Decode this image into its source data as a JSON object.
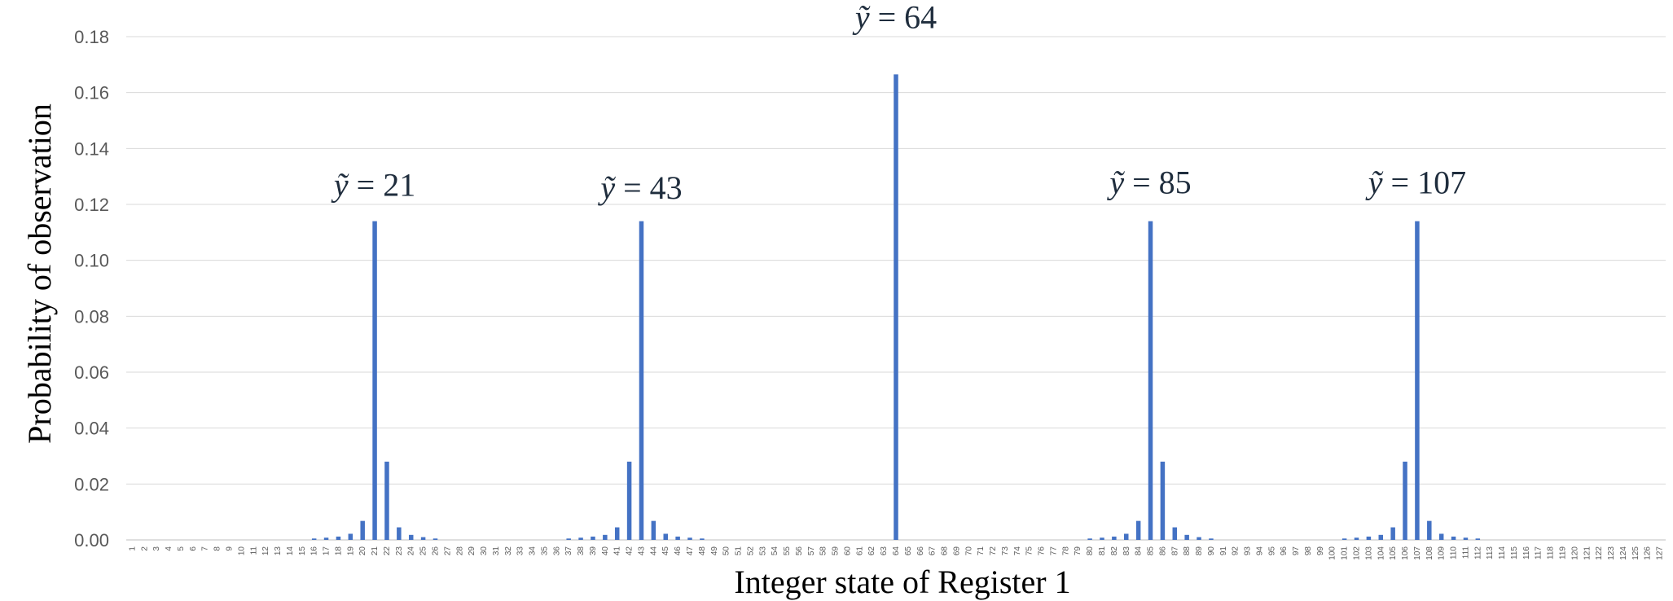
{
  "chart_data": {
    "type": "bar",
    "xlabel": "Integer state of Register 1",
    "ylabel": "Probability of observation",
    "ylim": [
      0,
      0.18
    ],
    "yticks": [
      "0.00",
      "0.02",
      "0.04",
      "0.06",
      "0.08",
      "0.10",
      "0.12",
      "0.14",
      "0.16",
      "0.18"
    ],
    "grid": true,
    "bar_color": "#4472c4",
    "categories": [
      1,
      2,
      3,
      4,
      5,
      6,
      7,
      8,
      9,
      10,
      11,
      12,
      13,
      14,
      15,
      16,
      17,
      18,
      19,
      20,
      21,
      22,
      23,
      24,
      25,
      26,
      27,
      28,
      29,
      30,
      31,
      32,
      33,
      34,
      35,
      36,
      37,
      38,
      39,
      40,
      41,
      42,
      43,
      44,
      45,
      46,
      47,
      48,
      49,
      50,
      51,
      52,
      53,
      54,
      55,
      56,
      57,
      58,
      59,
      60,
      61,
      62,
      63,
      64,
      65,
      66,
      67,
      68,
      69,
      70,
      71,
      72,
      73,
      74,
      75,
      76,
      77,
      78,
      79,
      80,
      81,
      82,
      83,
      84,
      85,
      86,
      87,
      88,
      89,
      90,
      91,
      92,
      93,
      94,
      95,
      96,
      97,
      98,
      99,
      100,
      101,
      102,
      103,
      104,
      105,
      106,
      107,
      108,
      109,
      110,
      111,
      112,
      113,
      114,
      115,
      116,
      117,
      118,
      119,
      120,
      121,
      122,
      123,
      124,
      125,
      126,
      127
    ],
    "values": [
      0,
      0,
      0,
      0,
      0,
      0,
      0,
      0,
      0,
      0,
      0,
      0,
      0,
      0,
      0,
      0.0005,
      0.0008,
      0.0012,
      0.0022,
      0.0068,
      0.114,
      0.028,
      0.0045,
      0.0018,
      0.001,
      0.0005,
      0,
      0,
      0,
      0,
      0,
      0,
      0,
      0,
      0,
      0,
      0.0005,
      0.0008,
      0.0012,
      0.0018,
      0.0045,
      0.028,
      0.114,
      0.0068,
      0.0022,
      0.0012,
      0.0008,
      0.0005,
      0,
      0,
      0,
      0,
      0,
      0,
      0,
      0,
      0,
      0,
      0,
      0,
      0,
      0,
      0,
      0.1665,
      0,
      0,
      0,
      0,
      0,
      0,
      0,
      0,
      0,
      0,
      0,
      0,
      0,
      0,
      0,
      0.0005,
      0.0008,
      0.0012,
      0.0022,
      0.0068,
      0.114,
      0.028,
      0.0045,
      0.0018,
      0.001,
      0.0005,
      0,
      0,
      0,
      0,
      0,
      0,
      0,
      0,
      0,
      0,
      0.0005,
      0.0008,
      0.0012,
      0.0018,
      0.0045,
      0.028,
      0.114,
      0.0068,
      0.0022,
      0.0012,
      0.0008,
      0.0005,
      0,
      0,
      0,
      0,
      0,
      0,
      0,
      0,
      0,
      0,
      0,
      0,
      0,
      0,
      0
    ],
    "annotations": [
      {
        "var": "ỹ",
        "text": "= 21",
        "at": 21,
        "y": 0.123
      },
      {
        "var": "ỹ",
        "text": "= 43",
        "at": 43,
        "y": 0.122
      },
      {
        "var": "ỹ",
        "text": "= 64",
        "at": 64,
        "y": 0.183
      },
      {
        "var": "ỹ",
        "text": "= 85",
        "at": 85,
        "y": 0.124
      },
      {
        "var": "ỹ",
        "text": "= 107",
        "at": 107,
        "y": 0.124
      }
    ]
  }
}
